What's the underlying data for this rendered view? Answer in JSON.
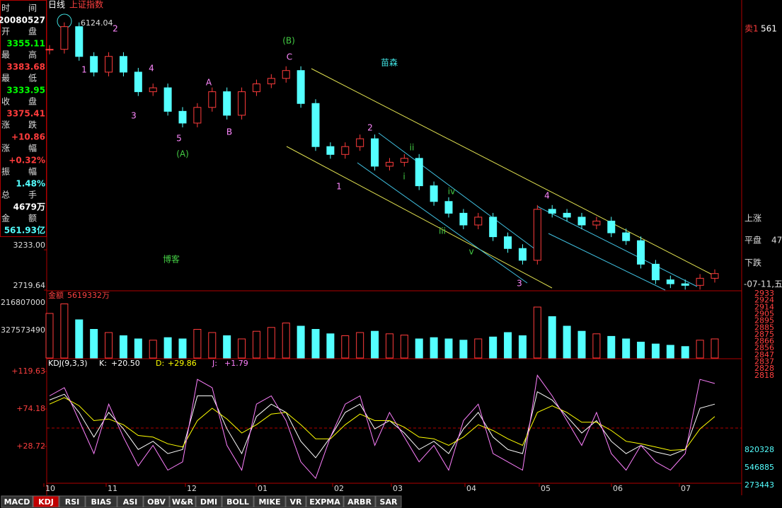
{
  "header": {
    "period": "日线",
    "index_name": "上证指数"
  },
  "info_panel": [
    {
      "label": "时间",
      "value": "20080527"
    },
    {
      "label": "开盘",
      "value": "3355.11"
    },
    {
      "label": "最高",
      "value": "3383.68"
    },
    {
      "label": "最低",
      "value": "3333.95"
    },
    {
      "label": "收盘",
      "value": "3375.41"
    },
    {
      "label": "涨跌",
      "value": "+10.86"
    },
    {
      "label": "涨幅",
      "value": "+0.32%"
    },
    {
      "label": "振幅",
      "value": "1.48%"
    },
    {
      "label": "总手",
      "value": "4679万"
    },
    {
      "label": "金额",
      "value": "561.93亿"
    }
  ],
  "price_chart": {
    "type": "candlestick",
    "ylim": [
      2719.64,
      6420
    ],
    "yticks": [
      {
        "value": 3233,
        "label": "3233.00"
      },
      {
        "value": 2719.64,
        "label": "2719.64"
      }
    ],
    "closes": [
      5791,
      6080,
      5700,
      5500,
      5700,
      5500,
      5250,
      5300,
      5000,
      4850,
      5050,
      5250,
      4950,
      5250,
      5350,
      5420,
      5520,
      5100,
      4550,
      4450,
      4550,
      4650,
      4300,
      4350,
      4400,
      4050,
      3850,
      3700,
      3550,
      3650,
      3400,
      3250,
      3100,
      3750,
      3700,
      3650,
      3550,
      3600,
      3450,
      3350,
      3050,
      2850,
      2800,
      2780,
      2870,
      2930
    ],
    "peak_label": "6124.04",
    "annotations": [
      "1",
      "2",
      "3",
      "4",
      "5",
      "A",
      "B",
      "C",
      "(A)",
      "(B)",
      "苗森",
      "博客",
      "1",
      "2",
      "3",
      "4",
      "i",
      "ii",
      "iii",
      "iv",
      "v"
    ]
  },
  "volume_chart": {
    "type": "bar",
    "title": "金额",
    "total": "5619332万",
    "axis_labels": [
      "216807000",
      "327573490"
    ],
    "ylim": [
      0,
      100
    ],
    "values": [
      70,
      85,
      60,
      45,
      40,
      35,
      30,
      28,
      32,
      30,
      45,
      40,
      35,
      30,
      42,
      48,
      55,
      50,
      45,
      38,
      35,
      40,
      42,
      38,
      36,
      30,
      32,
      30,
      28,
      30,
      33,
      40,
      35,
      80,
      65,
      50,
      42,
      38,
      34,
      30,
      25,
      22,
      20,
      18,
      28,
      30
    ]
  },
  "kdj_chart": {
    "type": "line",
    "title": "KDJ(9,3,3)",
    "readouts": [
      {
        "name": "K:",
        "value": "+20.50"
      },
      {
        "name": "D:",
        "value": "+29.86"
      },
      {
        "name": "J:",
        "value": "+1.79"
      }
    ],
    "ylim": [
      -15.9,
      134.2
    ],
    "yticks": [
      {
        "value": 119.63,
        "label": "+119.63"
      },
      {
        "value": 74.18,
        "label": "+74.18"
      },
      {
        "value": 28.72,
        "label": "+28.72"
      }
    ],
    "series": [
      {
        "name": "K",
        "color": "#ffffff",
        "values": [
          85,
          92,
          70,
          40,
          70,
          50,
          25,
          35,
          20,
          25,
          90,
          90,
          50,
          20,
          65,
          80,
          70,
          35,
          15,
          40,
          70,
          80,
          50,
          60,
          45,
          25,
          35,
          20,
          50,
          70,
          40,
          25,
          20,
          95,
          85,
          65,
          45,
          60,
          35,
          20,
          30,
          22,
          18,
          25,
          75,
          80
        ]
      },
      {
        "name": "D",
        "color": "#ffff00",
        "values": [
          80,
          88,
          78,
          60,
          62,
          55,
          42,
          40,
          32,
          28,
          60,
          75,
          62,
          45,
          55,
          68,
          70,
          55,
          38,
          38,
          55,
          68,
          60,
          60,
          52,
          40,
          38,
          30,
          40,
          55,
          48,
          38,
          30,
          70,
          78,
          70,
          58,
          58,
          48,
          35,
          32,
          28,
          24,
          25,
          50,
          65
        ]
      },
      {
        "name": "J",
        "color": "#ff80ff",
        "values": [
          90,
          100,
          60,
          20,
          80,
          40,
          5,
          30,
          0,
          10,
          110,
          100,
          30,
          0,
          80,
          90,
          60,
          10,
          -10,
          40,
          80,
          90,
          30,
          70,
          40,
          10,
          30,
          0,
          60,
          80,
          20,
          10,
          0,
          115,
          90,
          60,
          30,
          70,
          20,
          0,
          30,
          10,
          0,
          20,
          110,
          105
        ]
      }
    ]
  },
  "x_axis": [
    "10",
    "11",
    "12",
    "01",
    "02",
    "03",
    "04",
    "05",
    "06",
    "07"
  ],
  "tabs": [
    "MACD",
    "KDJ",
    "RSI",
    "BIAS",
    "ASI",
    "OBV",
    "W&R",
    "DMI",
    "BOLL",
    "MIKE",
    "VR",
    "EXPMA",
    "ARBR",
    "SAR"
  ],
  "active_tab": "KDJ",
  "right_panel": {
    "texts": [
      "卖1",
      "561",
      "上涨",
      "平盘",
      "47",
      "下跌",
      "-07-11,五"
    ],
    "scale": [
      "2933",
      "2924",
      "2914",
      "2905",
      "2895",
      "2885",
      "2875",
      "2866",
      "2856",
      "2847",
      "2837",
      "2828",
      "2818",
      "820328",
      "546885",
      "273443"
    ]
  }
}
